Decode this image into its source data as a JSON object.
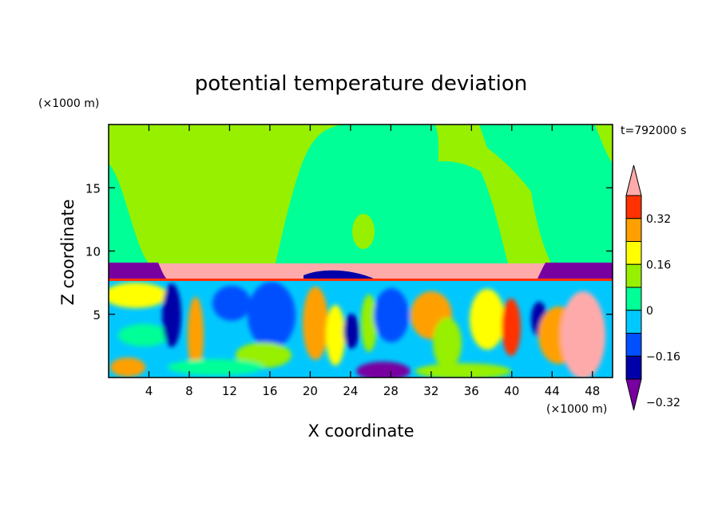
{
  "chart_data": {
    "type": "heatmap",
    "title": "potential temperature deviation",
    "time_label": "t=792000 s",
    "xlabel": "X coordinate",
    "ylabel": "Z coordinate",
    "x_unit": "(×1000 m)",
    "y_unit": "(×1000 m)",
    "xlim": [
      0,
      50
    ],
    "ylim": [
      0,
      20
    ],
    "x_ticks": [
      4,
      8,
      12,
      16,
      20,
      24,
      28,
      32,
      36,
      40,
      44,
      48
    ],
    "y_ticks": [
      5,
      10,
      15
    ],
    "colorbar": {
      "levels": [
        -0.4,
        -0.32,
        -0.24,
        -0.16,
        -0.08,
        0,
        0.08,
        0.16,
        0.24,
        0.32,
        0.4
      ],
      "colors": [
        "#0000a8",
        "#0050ff",
        "#00c8ff",
        "#00ff96",
        "#96f000",
        "#ffff00",
        "#ffa000",
        "#ff3200"
      ],
      "under_color": "#7800a0",
      "over_color": "#ffaaaa",
      "labels": [
        "0.32",
        "0.16",
        "0",
        "−0.16",
        "−0.32"
      ]
    }
  }
}
